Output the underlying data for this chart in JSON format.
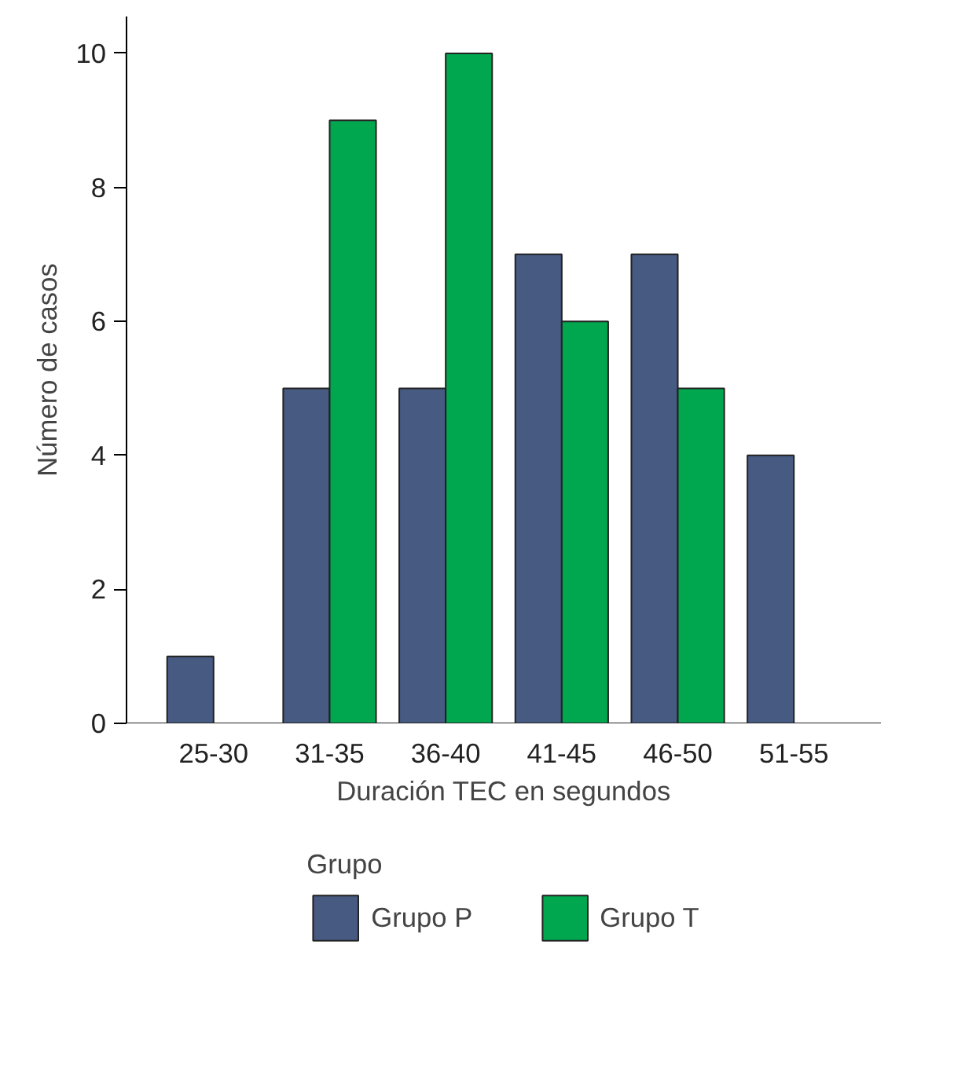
{
  "chart_data": {
    "type": "bar",
    "xlabel": "Duración TEC en segundos",
    "ylabel": "Número de casos",
    "legend_title": "Grupo",
    "legend": "bottom",
    "grid": false,
    "categories": [
      "25-30",
      "31-35",
      "36-40",
      "41-45",
      "46-50",
      "51-55"
    ],
    "series": [
      {
        "name": "Grupo P",
        "color": "#465a82",
        "values": [
          1,
          5,
          5,
          7,
          7,
          4
        ]
      },
      {
        "name": "Grupo T",
        "color": "#00a74f",
        "values": [
          null,
          9,
          10,
          6,
          5,
          null
        ]
      }
    ],
    "ylim": [
      0,
      10.55
    ],
    "yticks": [
      0,
      2,
      4,
      6,
      8,
      10
    ]
  }
}
